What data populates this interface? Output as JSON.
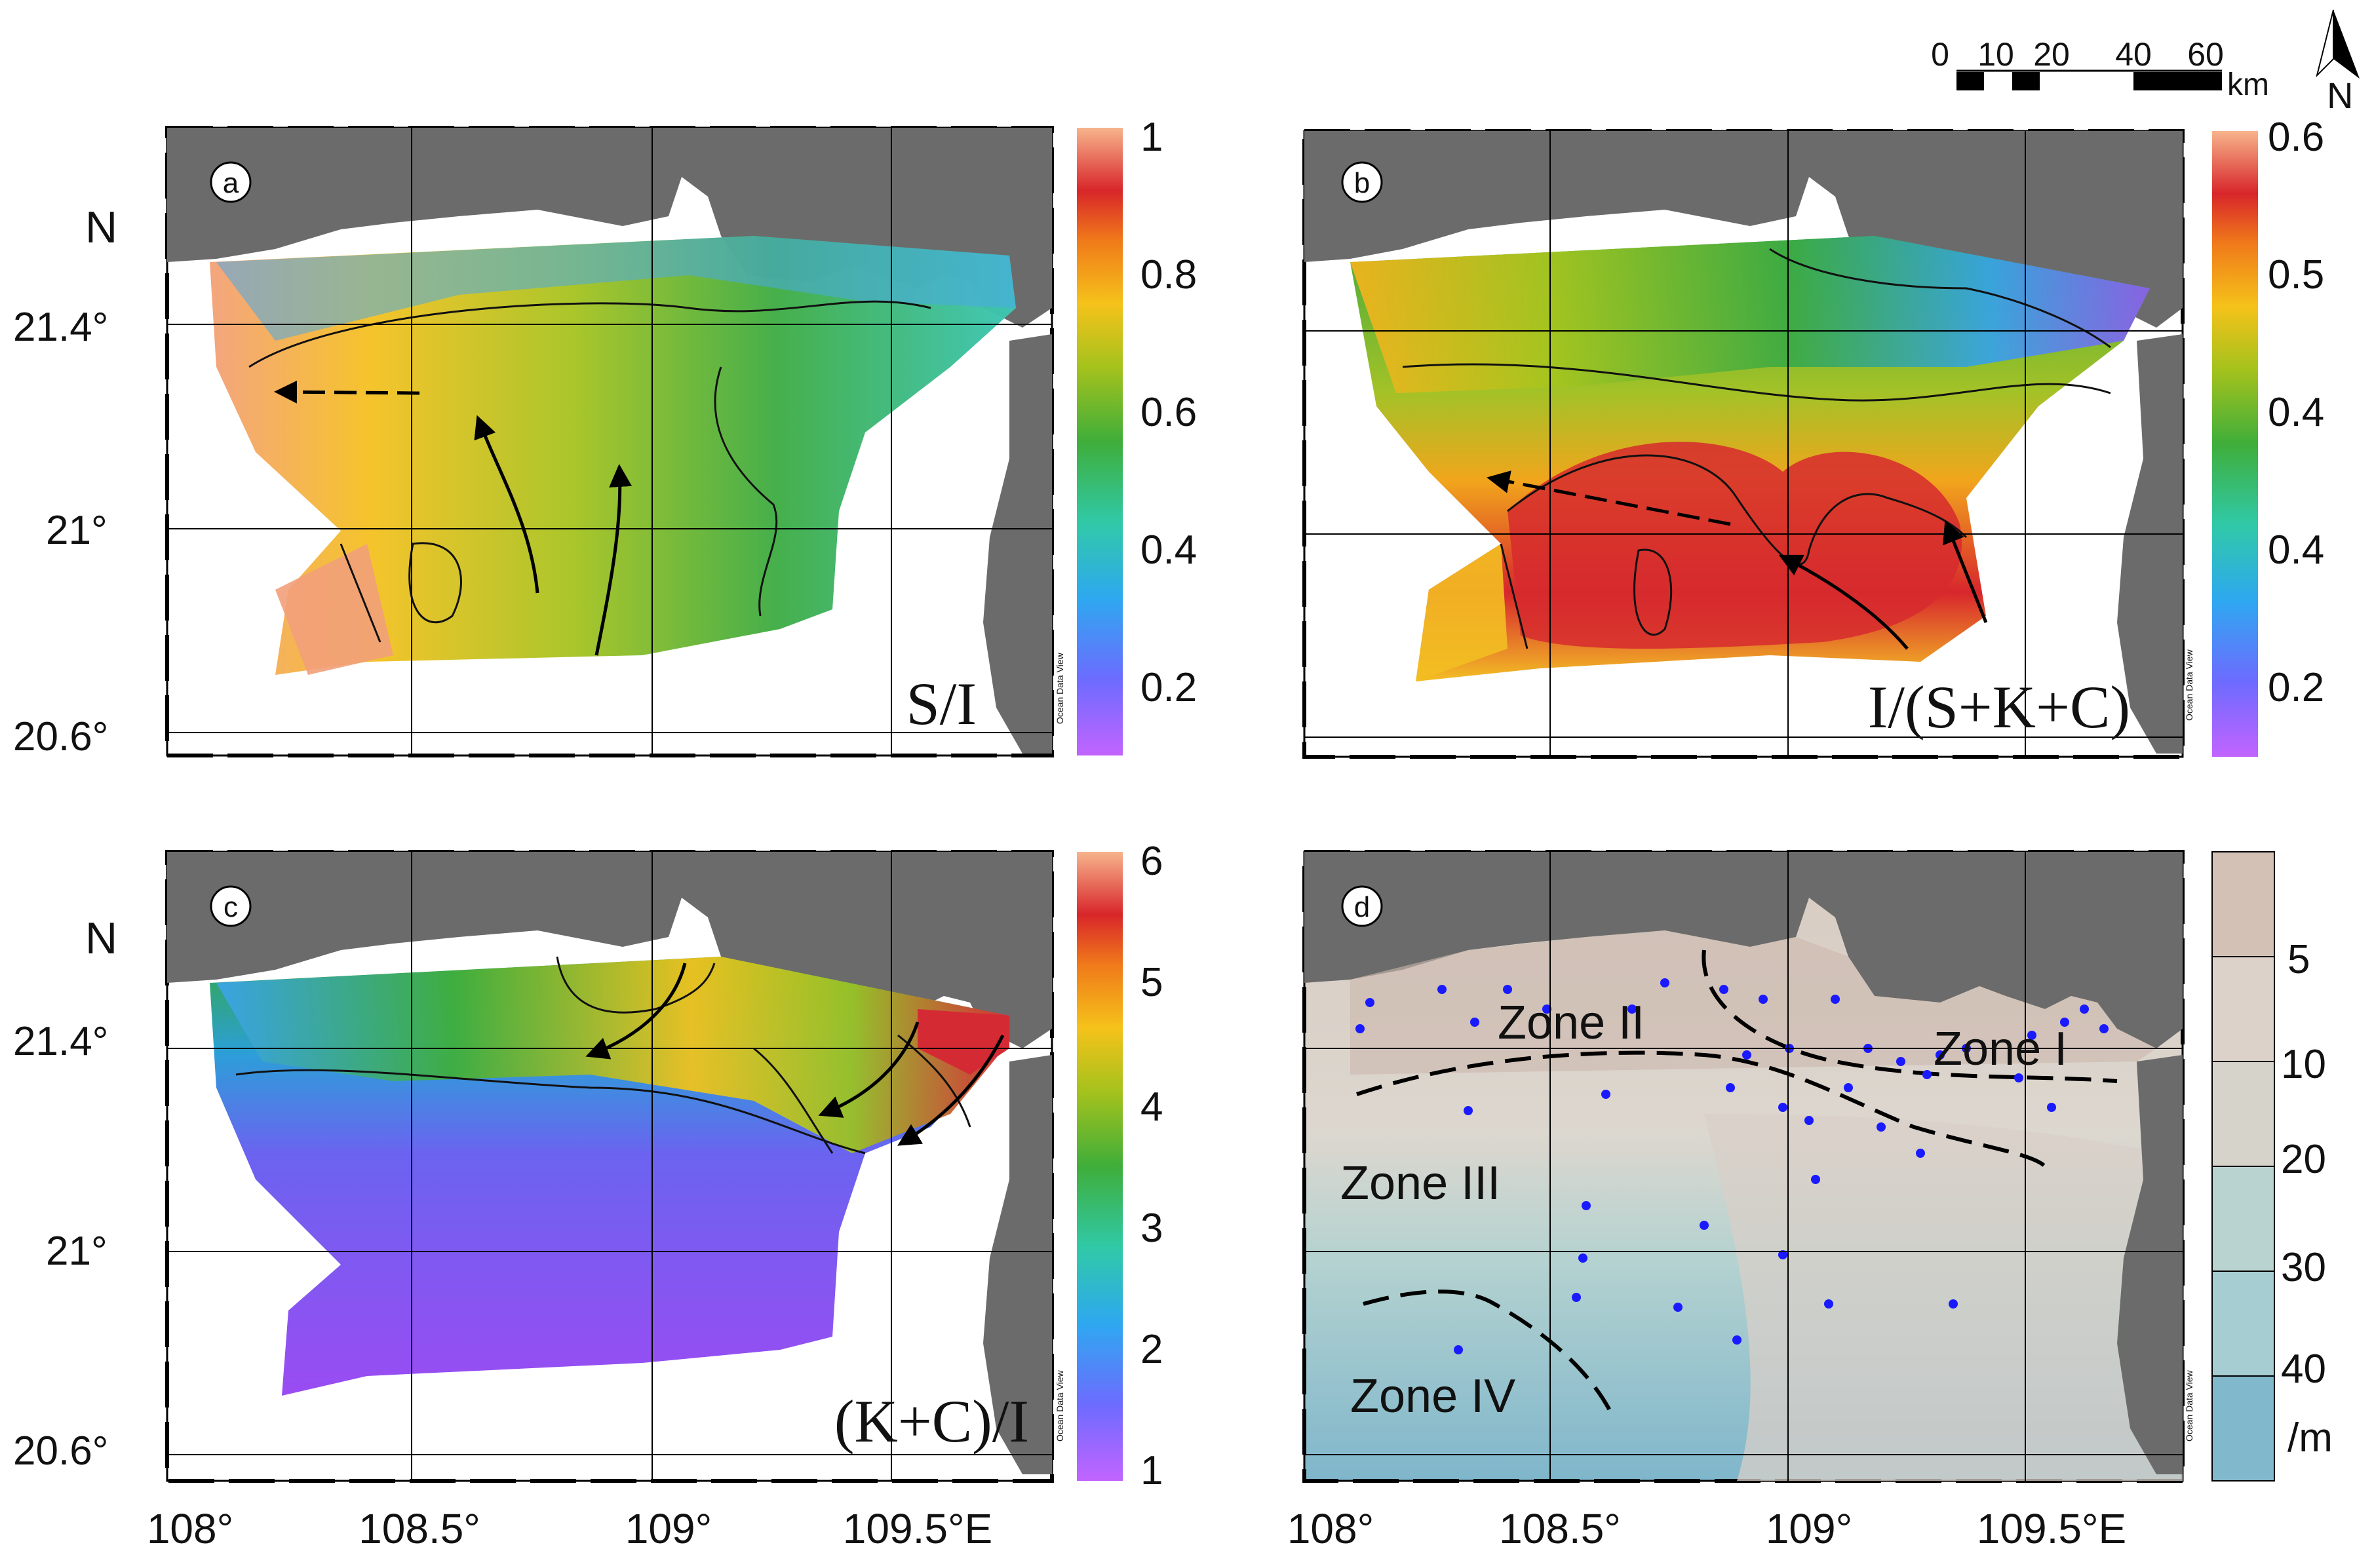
{
  "scale_bar": {
    "ticks": [
      "0",
      "10",
      "20",
      "40",
      "60"
    ],
    "unit": "km"
  },
  "north_arrow": {
    "label": "N"
  },
  "lat_axis": {
    "label": "N",
    "ticks": [
      "21.4°",
      "21°",
      "20.6°"
    ]
  },
  "lon_axis": {
    "ticks": [
      "108°",
      "108.5°",
      "109°",
      "109.5°E"
    ]
  },
  "watermark": "Ocean Data View",
  "panels": [
    {
      "id": "a",
      "letter": "a",
      "ratio_label": "S/I",
      "colorbar": {
        "ticks": [
          "1",
          "0.8",
          "0.6",
          "0.4",
          "0.2"
        ]
      }
    },
    {
      "id": "b",
      "letter": "b",
      "ratio_label": "I/(S+K+C)",
      "colorbar": {
        "ticks": [
          "0.6",
          "0.5",
          "0.4",
          "0.4",
          "0.2"
        ]
      }
    },
    {
      "id": "c",
      "letter": "c",
      "ratio_label": "(K+C)/I",
      "colorbar": {
        "ticks": [
          "6",
          "5",
          "4",
          "3",
          "2",
          "1"
        ]
      }
    },
    {
      "id": "d",
      "letter": "d",
      "zones": [
        "Zone I",
        "Zone II",
        "Zone III",
        "Zone IV"
      ],
      "colorbar": {
        "ticks": [
          "5",
          "10",
          "20",
          "30",
          "40"
        ],
        "unit": "/m"
      }
    }
  ],
  "colors": {
    "land": "#6b6b6b",
    "depth_shallow": "#d9cfc7",
    "depth_deep": "#7fb8cc",
    "station": "#1a1aff"
  }
}
